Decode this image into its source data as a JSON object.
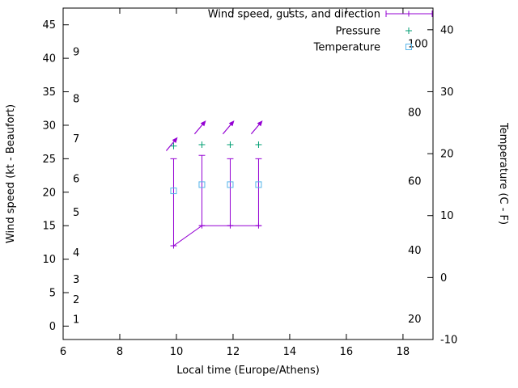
{
  "colors": {
    "wind": "#9400d3",
    "pressure": "#009e73",
    "temperature": "#56b4e9",
    "axis": "#000000",
    "background": "#ffffff"
  },
  "chart_data": {
    "type": "line",
    "title": "",
    "xlabel": "Local time (Europe/Athens)",
    "ylabel": "Wind speed (kt - Beaufort)",
    "y2label": "Temperature (C - F)",
    "xlim": [
      6,
      19.06
    ],
    "x_ticks": [
      6,
      8,
      10,
      12,
      14,
      16,
      18
    ],
    "ylim_kt": [
      -2,
      47.5
    ],
    "y_ticks_kt": [
      0,
      5,
      10,
      15,
      20,
      25,
      30,
      35,
      40,
      45
    ],
    "beaufort_ticks": [
      {
        "label": "1",
        "kt": 1
      },
      {
        "label": "2",
        "kt": 4
      },
      {
        "label": "3",
        "kt": 7
      },
      {
        "label": "4",
        "kt": 11
      },
      {
        "label": "5",
        "kt": 17
      },
      {
        "label": "6",
        "kt": 22
      },
      {
        "label": "7",
        "kt": 28
      },
      {
        "label": "8",
        "kt": 34
      },
      {
        "label": "9",
        "kt": 41
      }
    ],
    "y2lim_c": [
      -10,
      43.5
    ],
    "y2_ticks_c": [
      -10,
      0,
      10,
      20,
      30,
      40
    ],
    "f_ticks": [
      20,
      40,
      60,
      80,
      100
    ],
    "legend": [
      {
        "label": "Wind speed, gusts, and direction",
        "color": "#9400d3",
        "marker": "errorbar"
      },
      {
        "label": "Pressure",
        "color": "#009e73",
        "marker": "plus"
      },
      {
        "label": "Temperature",
        "color": "#56b4e9",
        "marker": "square"
      }
    ],
    "series": {
      "wind": {
        "name": "Wind speed, gusts, and direction",
        "color": "#9400d3",
        "x": [
          9.9,
          10.9,
          11.9,
          12.9
        ],
        "speed_kt": [
          12,
          15,
          15,
          15
        ],
        "gust_kt": [
          25,
          25.5,
          25,
          25
        ],
        "dir_deg_from_north": [
          40,
          40,
          40,
          40
        ],
        "arrow_y_kt": [
          26,
          28.5,
          28.5,
          28.5
        ]
      },
      "pressure": {
        "name": "Pressure",
        "color": "#009e73",
        "axis": "left (no numeric pressure scale shown)",
        "x": [
          9.9,
          10.9,
          11.9,
          12.9
        ],
        "y_on_kt_scale": [
          26.9,
          27.1,
          27.1,
          27.1
        ]
      },
      "temperature": {
        "name": "Temperature",
        "color": "#56b4e9",
        "x": [
          9.9,
          10.9,
          11.9,
          12.9
        ],
        "celsius": [
          14,
          15,
          15,
          15
        ]
      }
    }
  }
}
